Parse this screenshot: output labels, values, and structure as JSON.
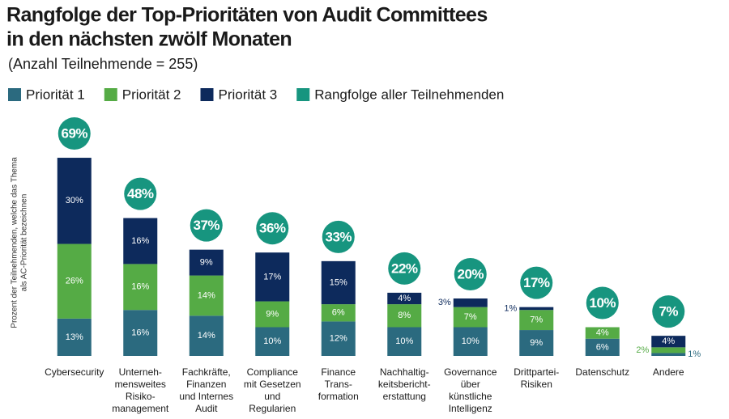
{
  "chart_data": {
    "type": "stacked_bar",
    "title": [
      "Rangfolge der Top-Prioritäten von Audit Committees",
      "in den nächsten zwölf Monaten"
    ],
    "subtitle": "(Anzahl Teilnehmende = 255)",
    "y_label": [
      "Prozent der Teilnehmenden, welche das Thema",
      "als AC-Priorität bezeichnen"
    ],
    "categories": [
      [
        "Cybersecurity"
      ],
      [
        "Unterneh-",
        "mensweites",
        "Risiko-",
        "management"
      ],
      [
        "Fachkräfte,",
        "Finanzen",
        "und Internes",
        "Audit"
      ],
      [
        "Compliance",
        "mit Gesetzen",
        "und",
        "Regularien"
      ],
      [
        "Finance",
        "Trans-",
        "formation"
      ],
      [
        "Nachhaltig-",
        "keitsbericht-",
        "erstattung"
      ],
      [
        "Governance",
        "über",
        "künstliche",
        "Intelligenz"
      ],
      [
        "Drittpartei-",
        "Risiken"
      ],
      [
        "Datenschutz"
      ],
      [
        "Andere"
      ]
    ],
    "series": [
      {
        "name": "Priorität 1",
        "color": "#2b6a7f",
        "values": [
          13,
          16,
          14,
          10,
          12,
          10,
          10,
          9,
          6,
          1
        ],
        "value_labels": [
          "13%",
          "16%",
          "14%",
          "10%",
          "12%",
          "10%",
          "10%",
          "9%",
          "6%",
          "1%"
        ]
      },
      {
        "name": "Priorität 2",
        "color": "#55ab45",
        "values": [
          26,
          16,
          14,
          9,
          6,
          8,
          7,
          7,
          4,
          2
        ],
        "value_labels": [
          "26%",
          "16%",
          "14%",
          "9%",
          "6%",
          "8%",
          "7%",
          "7%",
          "4%",
          "2%"
        ]
      },
      {
        "name": "Priorität 3",
        "color": "#0d2a5c",
        "values": [
          30,
          16,
          9,
          17,
          15,
          4,
          3,
          1,
          null,
          4
        ],
        "value_labels": [
          "30%",
          "16%",
          "9%",
          "17%",
          "15%",
          "4%",
          "3%",
          "1%",
          null,
          "4%"
        ]
      }
    ],
    "totals": {
      "name": "Rangfolge aller Teilnehmenden",
      "color": "#17957f",
      "values": [
        69,
        48,
        37,
        36,
        33,
        22,
        20,
        17,
        10,
        7
      ],
      "value_labels": [
        "69%",
        "48%",
        "37%",
        "36%",
        "33%",
        "22%",
        "20%",
        "17%",
        "10%",
        "7%"
      ]
    },
    "ylim": [
      0,
      80
    ]
  }
}
